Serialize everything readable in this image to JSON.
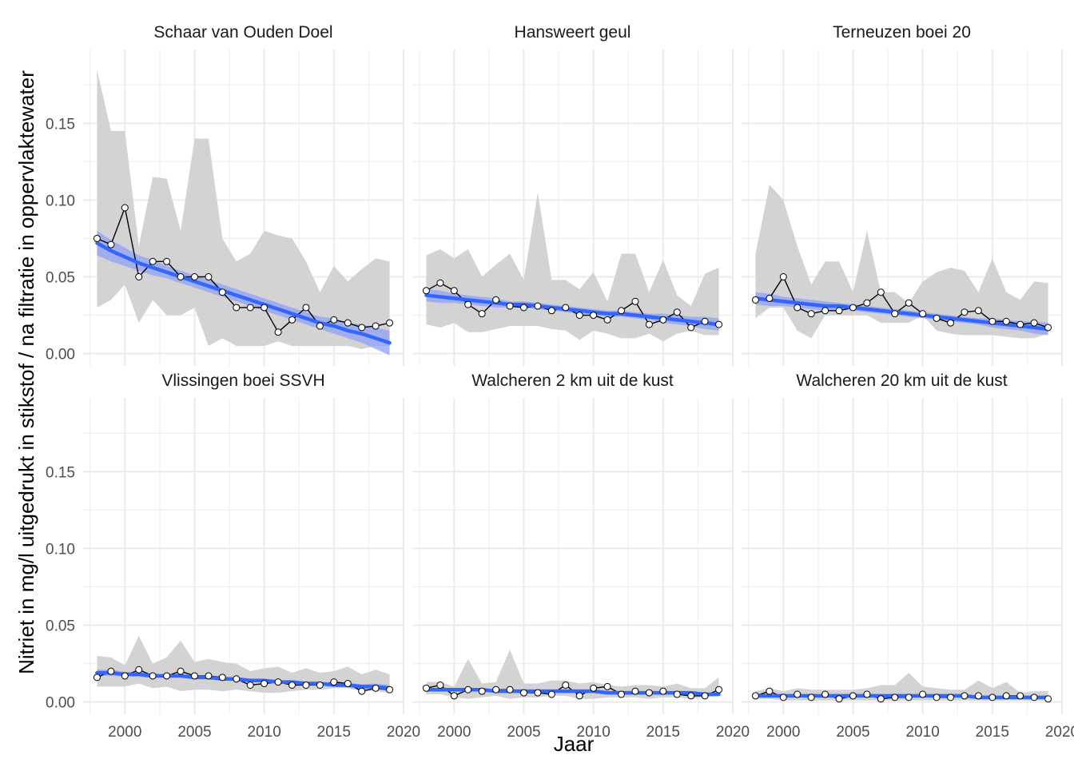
{
  "chart_data": {
    "type": "line",
    "xlabel": "Jaar",
    "ylabel": "Nitriet in mg/l uitgedrukt in stikstof / na filtratie in oppervlaktewater",
    "xlim": [
      1997,
      2020
    ],
    "ylim": [
      -0.008,
      0.198
    ],
    "x_ticks": [
      2000,
      2005,
      2010,
      2015,
      2020
    ],
    "y_ticks": [
      0.0,
      0.05,
      0.1,
      0.15
    ],
    "y_tick_labels": [
      "0.00",
      "0.05",
      "0.10",
      "0.15"
    ],
    "grid": true,
    "x": [
      1998,
      1999,
      2000,
      2001,
      2002,
      2003,
      2004,
      2005,
      2006,
      2007,
      2008,
      2009,
      2010,
      2011,
      2012,
      2013,
      2014,
      2015,
      2016,
      2017,
      2018,
      2019
    ],
    "colors": {
      "trend": "#3366FF",
      "trend_band": "#8FA2F5",
      "range_band": "#D3D3D3",
      "series": "#000000",
      "grid": "#EBEBEB"
    },
    "panels": [
      {
        "title": "Schaar van Ouden Doel",
        "values": [
          0.075,
          0.071,
          0.095,
          0.05,
          0.06,
          0.06,
          0.05,
          0.05,
          0.05,
          0.04,
          0.03,
          0.03,
          0.03,
          0.014,
          0.022,
          0.03,
          0.018,
          0.022,
          0.02,
          0.017,
          0.018,
          0.02
        ],
        "range_min": [
          0.03,
          0.035,
          0.045,
          0.02,
          0.035,
          0.025,
          0.025,
          0.03,
          0.005,
          0.01,
          0.005,
          0.005,
          0.005,
          0.008,
          0.005,
          0.005,
          0.005,
          0.005,
          0.005,
          0.003,
          0.005,
          0.005
        ],
        "range_max": [
          0.185,
          0.145,
          0.145,
          0.07,
          0.115,
          0.114,
          0.08,
          0.14,
          0.14,
          0.075,
          0.06,
          0.065,
          0.08,
          0.077,
          0.075,
          0.06,
          0.04,
          0.057,
          0.047,
          0.055,
          0.062,
          0.06
        ],
        "trend": [
          0.072,
          0.067,
          0.063,
          0.059,
          0.056,
          0.053,
          0.05,
          0.047,
          0.044,
          0.041,
          0.038,
          0.035,
          0.032,
          0.029,
          0.026,
          0.023,
          0.02,
          0.018,
          0.015,
          0.013,
          0.01,
          0.007
        ],
        "trend_ci": [
          0.008,
          0.007,
          0.006,
          0.005,
          0.005,
          0.004,
          0.004,
          0.004,
          0.004,
          0.004,
          0.004,
          0.004,
          0.004,
          0.004,
          0.004,
          0.004,
          0.004,
          0.005,
          0.005,
          0.006,
          0.007,
          0.008
        ]
      },
      {
        "title": "Hansweert geul",
        "values": [
          0.041,
          0.046,
          0.041,
          0.032,
          0.026,
          0.035,
          0.031,
          0.03,
          0.031,
          0.028,
          0.03,
          0.025,
          0.025,
          0.022,
          0.028,
          0.034,
          0.019,
          0.022,
          0.027,
          0.017,
          0.021,
          0.019
        ],
        "range_min": [
          0.019,
          0.017,
          0.02,
          0.014,
          0.014,
          0.016,
          0.018,
          0.018,
          0.018,
          0.016,
          0.015,
          0.009,
          0.015,
          0.013,
          0.01,
          0.01,
          0.013,
          0.008,
          0.013,
          0.015,
          0.012,
          0.012
        ],
        "range_max": [
          0.064,
          0.068,
          0.062,
          0.068,
          0.05,
          0.058,
          0.065,
          0.048,
          0.105,
          0.048,
          0.048,
          0.042,
          0.053,
          0.034,
          0.065,
          0.065,
          0.04,
          0.061,
          0.038,
          0.031,
          0.052,
          0.056
        ],
        "trend": [
          0.038,
          0.037,
          0.036,
          0.035,
          0.034,
          0.033,
          0.032,
          0.032,
          0.031,
          0.03,
          0.029,
          0.028,
          0.027,
          0.026,
          0.026,
          0.025,
          0.024,
          0.023,
          0.022,
          0.021,
          0.02,
          0.019
        ],
        "trend_ci": [
          0.004,
          0.004,
          0.003,
          0.003,
          0.003,
          0.003,
          0.002,
          0.002,
          0.002,
          0.002,
          0.002,
          0.002,
          0.002,
          0.002,
          0.002,
          0.002,
          0.002,
          0.003,
          0.003,
          0.003,
          0.004,
          0.004
        ]
      },
      {
        "title": "Terneuzen boei 20",
        "values": [
          0.035,
          0.036,
          0.05,
          0.03,
          0.026,
          0.028,
          0.028,
          0.03,
          0.033,
          0.04,
          0.026,
          0.033,
          0.026,
          0.023,
          0.02,
          0.027,
          0.028,
          0.021,
          0.021,
          0.019,
          0.02,
          0.017
        ],
        "range_min": [
          0.023,
          0.03,
          0.03,
          0.015,
          0.01,
          0.025,
          0.025,
          0.025,
          0.025,
          0.02,
          0.02,
          0.02,
          0.025,
          0.015,
          0.013,
          0.012,
          0.012,
          0.012,
          0.011,
          0.01,
          0.01,
          0.013
        ],
        "range_max": [
          0.065,
          0.11,
          0.1,
          0.07,
          0.045,
          0.06,
          0.06,
          0.04,
          0.08,
          0.04,
          0.04,
          0.033,
          0.047,
          0.053,
          0.056,
          0.054,
          0.04,
          0.062,
          0.04,
          0.035,
          0.047,
          0.046
        ],
        "trend": [
          0.036,
          0.035,
          0.034,
          0.033,
          0.032,
          0.031,
          0.031,
          0.03,
          0.029,
          0.028,
          0.027,
          0.026,
          0.025,
          0.024,
          0.023,
          0.022,
          0.021,
          0.02,
          0.019,
          0.018,
          0.017,
          0.016
        ],
        "trend_ci": [
          0.004,
          0.004,
          0.003,
          0.003,
          0.003,
          0.003,
          0.002,
          0.002,
          0.002,
          0.002,
          0.002,
          0.002,
          0.002,
          0.002,
          0.002,
          0.002,
          0.002,
          0.003,
          0.003,
          0.003,
          0.004,
          0.004
        ]
      },
      {
        "title": "Vlissingen boei SSVH",
        "values": [
          0.016,
          0.02,
          0.017,
          0.021,
          0.017,
          0.017,
          0.02,
          0.017,
          0.017,
          0.016,
          0.015,
          0.011,
          0.012,
          0.013,
          0.011,
          0.011,
          0.011,
          0.013,
          0.012,
          0.007,
          0.009,
          0.008
        ],
        "range_min": [
          0.01,
          0.01,
          0.01,
          0.012,
          0.009,
          0.01,
          0.007,
          0.008,
          0.008,
          0.007,
          0.008,
          0.007,
          0.006,
          0.006,
          0.007,
          0.008,
          0.008,
          0.009,
          0.009,
          0.007,
          0.007,
          0.006
        ],
        "range_max": [
          0.03,
          0.029,
          0.024,
          0.043,
          0.025,
          0.029,
          0.04,
          0.026,
          0.028,
          0.026,
          0.025,
          0.02,
          0.022,
          0.023,
          0.019,
          0.022,
          0.019,
          0.02,
          0.023,
          0.018,
          0.021,
          0.018
        ],
        "trend": [
          0.019,
          0.019,
          0.018,
          0.018,
          0.017,
          0.017,
          0.017,
          0.016,
          0.016,
          0.015,
          0.015,
          0.014,
          0.014,
          0.013,
          0.013,
          0.012,
          0.012,
          0.011,
          0.011,
          0.01,
          0.01,
          0.009
        ],
        "trend_ci": [
          0.002,
          0.002,
          0.0015,
          0.0015,
          0.0015,
          0.001,
          0.001,
          0.001,
          0.001,
          0.001,
          0.001,
          0.001,
          0.001,
          0.001,
          0.001,
          0.001,
          0.001,
          0.001,
          0.0015,
          0.0015,
          0.002,
          0.002
        ]
      },
      {
        "title": "Walcheren 2 km uit de kust",
        "values": [
          0.009,
          0.011,
          0.004,
          0.008,
          0.007,
          0.008,
          0.008,
          0.006,
          0.006,
          0.005,
          0.011,
          0.004,
          0.009,
          0.01,
          0.005,
          0.007,
          0.006,
          0.007,
          0.005,
          0.004,
          0.004,
          0.008
        ],
        "range_min": [
          0.005,
          0.005,
          0.003,
          0.002,
          0.003,
          0.004,
          0.002,
          0.003,
          0.003,
          0.004,
          0.004,
          0.002,
          0.002,
          0.003,
          0.003,
          0.003,
          0.002,
          0.003,
          0.003,
          0.002,
          0.003,
          0.004
        ],
        "range_max": [
          0.013,
          0.013,
          0.01,
          0.028,
          0.012,
          0.013,
          0.034,
          0.012,
          0.012,
          0.014,
          0.014,
          0.012,
          0.013,
          0.011,
          0.01,
          0.011,
          0.011,
          0.01,
          0.012,
          0.009,
          0.009,
          0.016
        ],
        "trend": [
          0.008,
          0.008,
          0.008,
          0.008,
          0.008,
          0.007,
          0.007,
          0.007,
          0.007,
          0.007,
          0.007,
          0.007,
          0.007,
          0.006,
          0.006,
          0.006,
          0.006,
          0.006,
          0.006,
          0.006,
          0.005,
          0.005
        ],
        "trend_ci": [
          0.001,
          0.001,
          0.001,
          0.001,
          0.001,
          0.001,
          0.001,
          0.001,
          0.001,
          0.001,
          0.001,
          0.001,
          0.001,
          0.001,
          0.001,
          0.001,
          0.001,
          0.001,
          0.001,
          0.001,
          0.001,
          0.001
        ]
      },
      {
        "title": "Walcheren 20 km uit de kust",
        "values": [
          0.004,
          0.007,
          0.003,
          0.005,
          0.003,
          0.005,
          0.002,
          0.004,
          0.005,
          0.002,
          0.003,
          0.003,
          0.005,
          0.003,
          0.003,
          0.004,
          0.004,
          0.003,
          0.004,
          0.004,
          0.003,
          0.002
        ],
        "range_min": [
          0.002,
          0.002,
          0.001,
          0.001,
          0.001,
          0.001,
          0.001,
          0.001,
          0.001,
          0.001,
          0.001,
          0.001,
          0.001,
          0.001,
          0.001,
          0.001,
          0.001,
          0.001,
          0.001,
          0.001,
          0.001,
          0.001
        ],
        "range_max": [
          0.007,
          0.009,
          0.007,
          0.009,
          0.008,
          0.008,
          0.008,
          0.008,
          0.009,
          0.011,
          0.011,
          0.019,
          0.01,
          0.009,
          0.008,
          0.008,
          0.014,
          0.009,
          0.013,
          0.006,
          0.007,
          0.007
        ],
        "trend": [
          0.004,
          0.004,
          0.004,
          0.004,
          0.004,
          0.004,
          0.004,
          0.004,
          0.004,
          0.004,
          0.004,
          0.004,
          0.004,
          0.004,
          0.004,
          0.004,
          0.003,
          0.003,
          0.003,
          0.003,
          0.003,
          0.003
        ],
        "trend_ci": [
          0.001,
          0.001,
          0.001,
          0.001,
          0.001,
          0.001,
          0.001,
          0.001,
          0.001,
          0.001,
          0.001,
          0.001,
          0.001,
          0.001,
          0.001,
          0.001,
          0.001,
          0.001,
          0.001,
          0.001,
          0.001,
          0.001
        ]
      }
    ]
  }
}
